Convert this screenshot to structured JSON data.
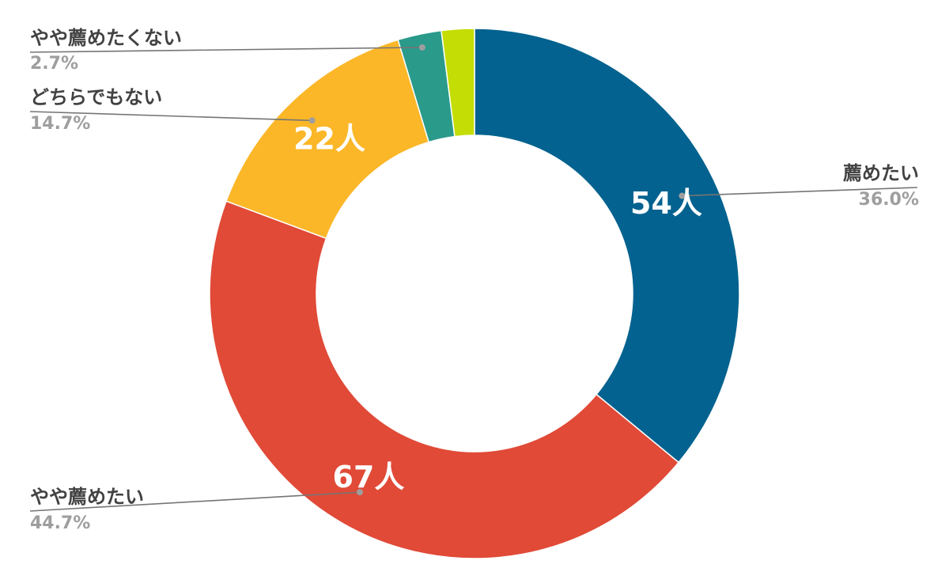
{
  "chart_data": {
    "type": "pie",
    "donut": true,
    "slices": [
      {
        "label": "薦めたい",
        "value": 54,
        "value_label": "54人",
        "percent_label": "36.0%",
        "color": "#03628F"
      },
      {
        "label": "やや薦めたい",
        "value": 67,
        "value_label": "67人",
        "percent_label": "44.7%",
        "color": "#E04A37"
      },
      {
        "label": "どちらでもない",
        "value": 22,
        "value_label": "22人",
        "percent_label": "14.7%",
        "color": "#FBB728"
      },
      {
        "label": "やや薦めたくない",
        "value": 4,
        "value_label": "",
        "percent_label": "2.7%",
        "color": "#2A9A8B"
      },
      {
        "label": "",
        "value": 3,
        "value_label": "",
        "percent_label": "",
        "color": "#C4DD04"
      }
    ]
  }
}
